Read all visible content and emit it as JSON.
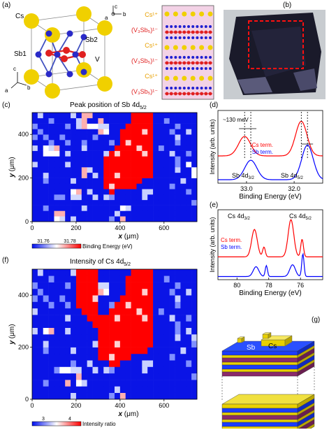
{
  "panel_labels": [
    "(a)",
    "(b)",
    "(c)",
    "(d)",
    "(e)",
    "(f)",
    "(g)"
  ],
  "panel_a": {
    "atoms": {
      "cs": "Cs",
      "sb1": "Sb1",
      "sb2": "Sb2",
      "v": "V"
    },
    "axes_left": {
      "c": "c",
      "a": "a",
      "b": "b"
    },
    "axes_right": {
      "c": "c",
      "a": "a",
      "b": "b"
    },
    "layer_labels": [
      "Cs¹⁺",
      "(V₃Sb₅)¹⁻",
      "Cs¹⁺",
      "(V₃Sb₅)¹⁻",
      "Cs¹⁺",
      "(V₃Sb₅)¹⁻"
    ],
    "colors": {
      "cs": "#f0d000",
      "v": "#e02020",
      "sb": "#2020d0",
      "layer_bg": "#f0c8e0"
    }
  },
  "panel_c": {
    "title": "Peak position of Sb 4d",
    "title_sub": "5/2",
    "xlabel_var": "x",
    "xlabel_unit": "(μm)",
    "ylabel_var": "y",
    "ylabel_unit": "(μm)",
    "colorbar_min": "31.76",
    "colorbar_max": "31.78",
    "colorbar_label": "Binding Energy (eV)"
  },
  "panel_d": {
    "annotation": "~130 meV",
    "ylabel": "Intensity (arb. units)",
    "xlabel": "Binding Energy (eV)",
    "peak_left_label": "Sb 4d",
    "peak_left_sub": "3/2",
    "peak_right_label": "Sb 4d",
    "peak_right_sub": "5/2",
    "legend_cs": "Cs term.",
    "legend_sb": "Sb term."
  },
  "panel_e": {
    "ylabel": "Intensity (arb. units)",
    "xlabel": "Binding Energy (eV)",
    "peak_left_label": "Cs 4d",
    "peak_left_sub": "3/2",
    "peak_right_label": "Cs 4d",
    "peak_right_sub": "5/2",
    "legend_cs": "Cs term.",
    "legend_sb": "Sb term."
  },
  "panel_f": {
    "title": "Intensity of Cs 4d",
    "title_sub": "5/2",
    "xlabel_var": "x",
    "xlabel_unit": "(μm)",
    "ylabel_var": "y",
    "ylabel_unit": "(μm)",
    "colorbar_min": "3",
    "colorbar_max": "4",
    "colorbar_label": "Intensity ratio"
  },
  "panel_g": {
    "top_label": "Cs",
    "layer_label": "Sb"
  },
  "chart_data": [
    {
      "type": "heatmap",
      "title": "Peak position of Sb 4d5/2",
      "xlabel": "x (μm)",
      "ylabel": "y (μm)",
      "xlim": [
        0,
        750
      ],
      "ylim": [
        0,
        500
      ],
      "x_ticks": [
        0,
        200,
        400,
        600
      ],
      "y_ticks": [
        0,
        200,
        400
      ],
      "colorbar": {
        "min": 31.76,
        "max": 31.78,
        "label": "Binding Energy (eV)"
      },
      "high_region_outline": [
        [
          440,
          500
        ],
        [
          550,
          500
        ],
        [
          550,
          340
        ],
        [
          560,
          240
        ],
        [
          530,
          200
        ],
        [
          470,
          160
        ],
        [
          360,
          130
        ],
        [
          320,
          170
        ],
        [
          320,
          280
        ],
        [
          380,
          340
        ],
        [
          410,
          420
        ],
        [
          440,
          440
        ]
      ],
      "bright_spots": [
        [
          310,
          440
        ],
        [
          240,
          230
        ],
        [
          90,
          320
        ],
        [
          200,
          120
        ],
        [
          110,
          20
        ],
        [
          250,
          460
        ],
        [
          420,
          40
        ],
        [
          720,
          240
        ]
      ]
    },
    {
      "type": "line",
      "title": "",
      "xlabel": "Binding Energy (eV)",
      "ylabel": "Intensity (arb. units)",
      "xlim": [
        33.6,
        31.4
      ],
      "x_ticks": [
        33.0,
        32.0
      ],
      "x_direction": "reversed",
      "series": [
        {
          "name": "Cs term.",
          "color": "#ff0000",
          "offset": 0.55,
          "peaks": [
            [
              33.04,
              0.45,
              0.18
            ],
            [
              31.85,
              0.8,
              0.17
            ]
          ]
        },
        {
          "name": "Sb term.",
          "color": "#0000ff",
          "offset": 0.0,
          "peaks": [
            [
              32.91,
              0.45,
              0.18
            ],
            [
              31.72,
              0.8,
              0.17
            ]
          ]
        }
      ],
      "annotation": {
        "text": "~130 meV",
        "shift_ev": 0.13
      }
    },
    {
      "type": "line",
      "title": "",
      "xlabel": "Binding Energy (eV)",
      "ylabel": "Intensity (arb. units)",
      "xlim": [
        81.2,
        74.6
      ],
      "x_ticks": [
        80,
        78,
        76
      ],
      "x_direction": "reversed",
      "series": [
        {
          "name": "Cs term.",
          "color": "#ff0000",
          "offset": 0.5,
          "peaks": [
            [
              78.9,
              0.7,
              0.25
            ],
            [
              78.3,
              0.25,
              0.12
            ],
            [
              76.6,
              0.95,
              0.25
            ],
            [
              75.9,
              0.45,
              0.12
            ]
          ]
        },
        {
          "name": "Sb term.",
          "color": "#0000ff",
          "offset": 0.0,
          "peaks": [
            [
              78.8,
              0.25,
              0.25
            ],
            [
              78.15,
              0.28,
              0.1
            ],
            [
              76.5,
              0.3,
              0.25
            ],
            [
              75.85,
              0.58,
              0.1
            ]
          ]
        }
      ]
    },
    {
      "type": "heatmap",
      "title": "Intensity of Cs 4d5/2",
      "xlabel": "x (μm)",
      "ylabel": "y (μm)",
      "xlim": [
        0,
        750
      ],
      "ylim": [
        0,
        500
      ],
      "x_ticks": [
        0,
        200,
        400,
        600
      ],
      "y_ticks": [
        0,
        200,
        400
      ],
      "colorbar": {
        "min": 3,
        "max": 4,
        "label": "Intensity ratio"
      },
      "high_region_outline": [
        [
          200,
          500
        ],
        [
          290,
          500
        ],
        [
          290,
          330
        ],
        [
          360,
          340
        ],
        [
          420,
          420
        ],
        [
          450,
          500
        ],
        [
          550,
          500
        ],
        [
          550,
          300
        ],
        [
          560,
          230
        ],
        [
          520,
          190
        ],
        [
          430,
          150
        ],
        [
          360,
          120
        ],
        [
          310,
          160
        ],
        [
          290,
          270
        ],
        [
          230,
          330
        ],
        [
          200,
          380
        ]
      ],
      "bright_spots": [
        [
          320,
          420
        ],
        [
          150,
          120
        ],
        [
          190,
          90
        ],
        [
          250,
          180
        ],
        [
          420,
          20
        ],
        [
          360,
          230
        ],
        [
          70,
          250
        ]
      ]
    }
  ]
}
